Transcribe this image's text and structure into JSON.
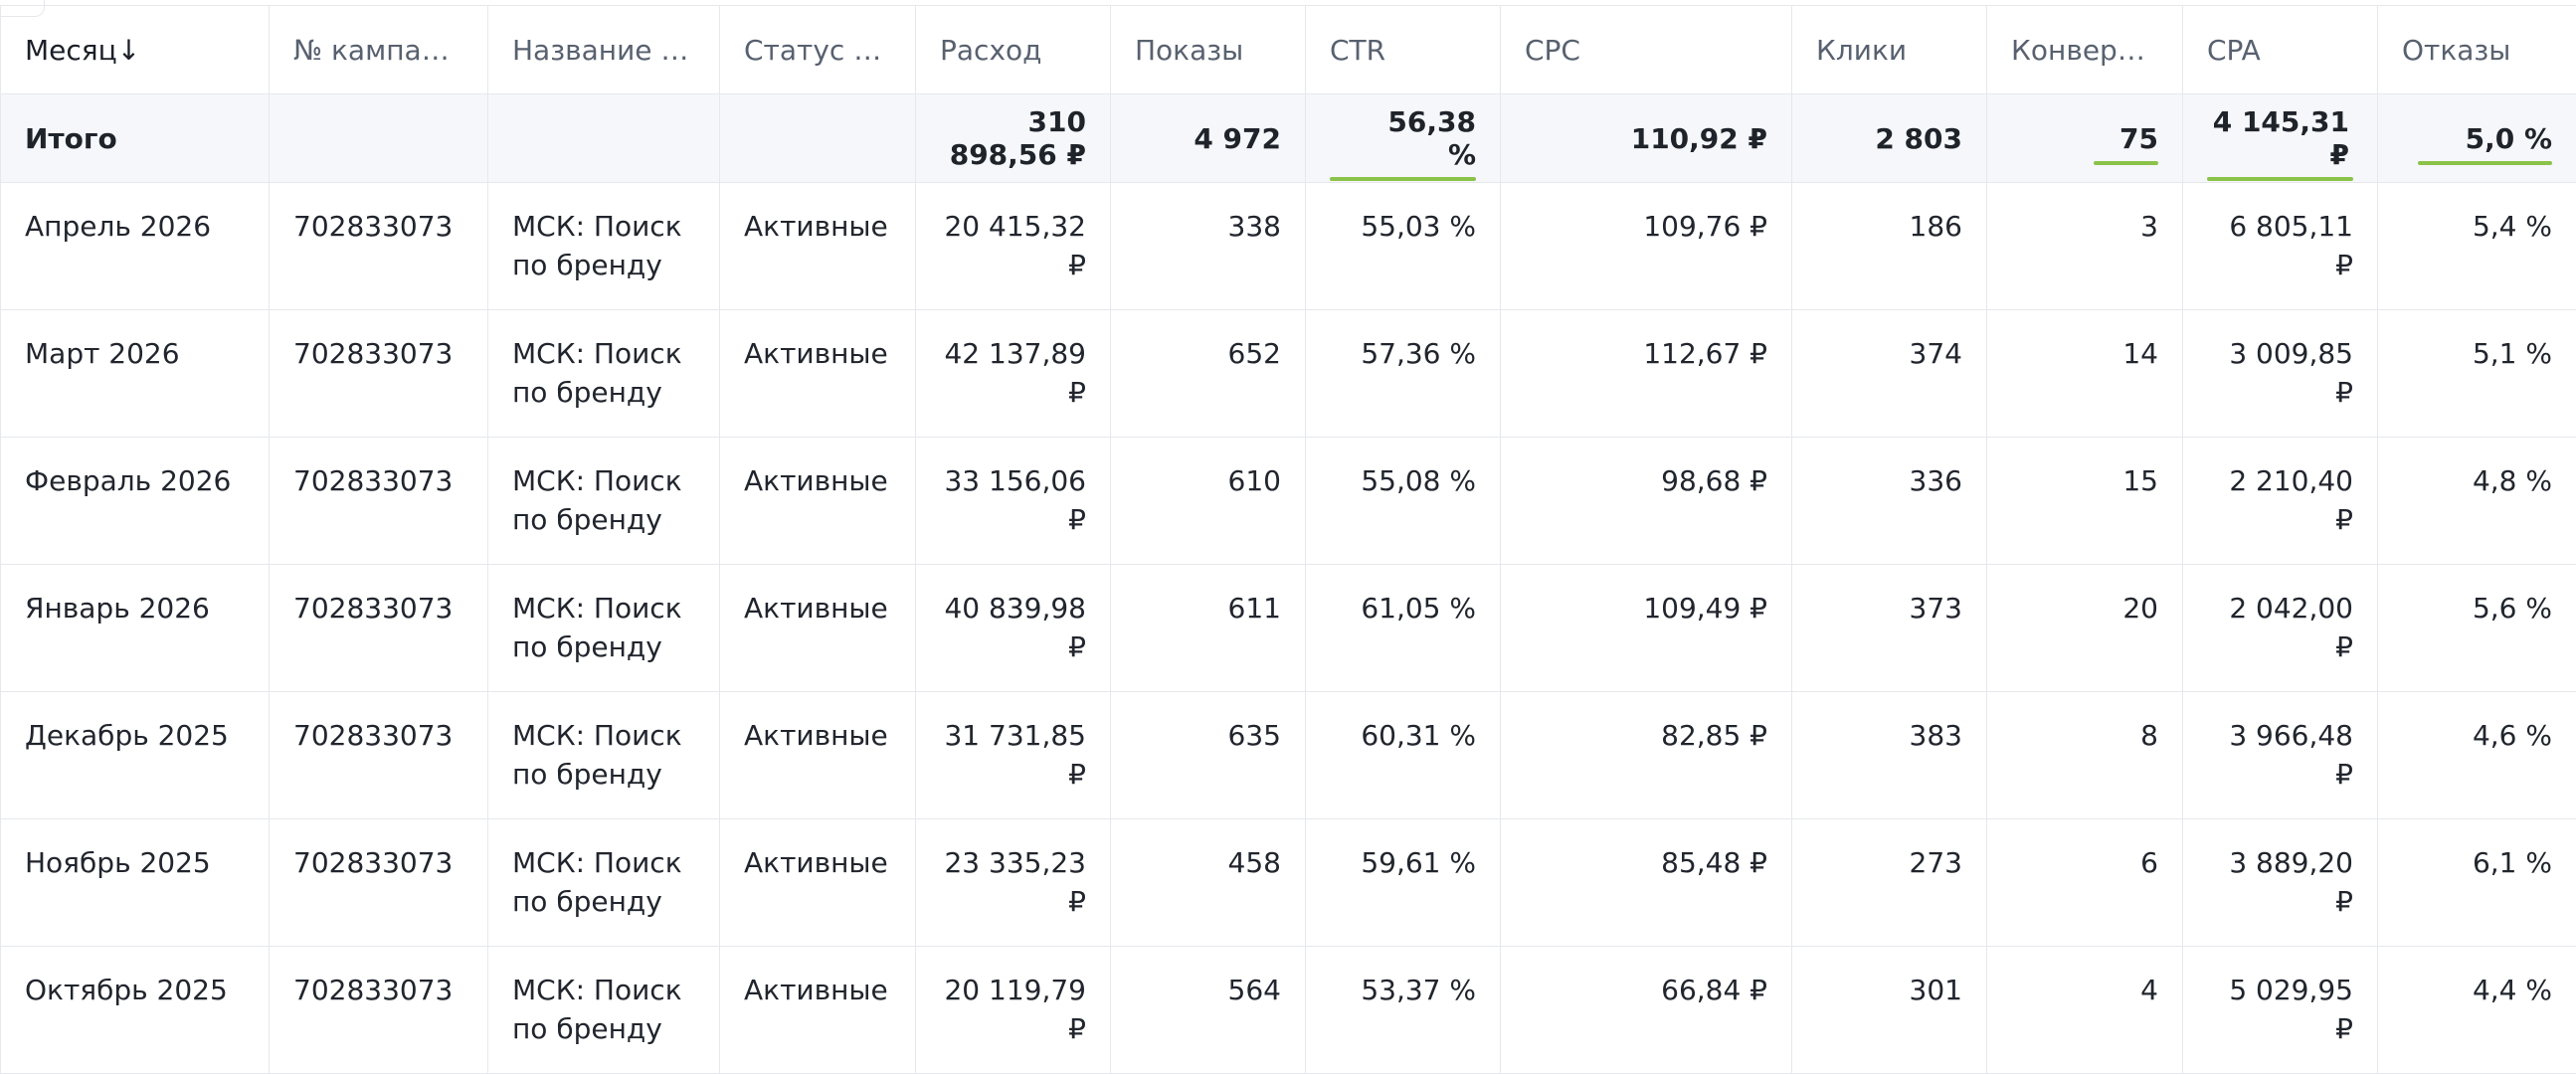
{
  "accent_color": "#8bc34a",
  "columns": [
    {
      "key": "month",
      "label": "Месяц",
      "sort_icon": "arrow-down-icon",
      "sort_glyph": "↓"
    },
    {
      "key": "campaign_no",
      "label": "№ кампании"
    },
    {
      "key": "campaign_name",
      "label": "Название ка..."
    },
    {
      "key": "campaign_status",
      "label": "Статус ка..."
    },
    {
      "key": "spend",
      "label": "Расход"
    },
    {
      "key": "impressions",
      "label": "Показы"
    },
    {
      "key": "ctr",
      "label": "CTR"
    },
    {
      "key": "cpc",
      "label": "CPC"
    },
    {
      "key": "clicks",
      "label": "Клики"
    },
    {
      "key": "conversions",
      "label": "Конверсии"
    },
    {
      "key": "cpa",
      "label": "CPA"
    },
    {
      "key": "bounces",
      "label": "Отказы"
    }
  ],
  "total": {
    "label": "Итого",
    "campaign_no": "",
    "campaign_name": "",
    "campaign_status": "",
    "spend": "310 898,56 ₽",
    "impressions": "4 972",
    "ctr": "56,38 %",
    "cpc": "110,92 ₽",
    "clicks": "2 803",
    "conversions": "75",
    "cpa": "4 145,31 ₽",
    "bounces": "5,0 %"
  },
  "rows": [
    {
      "month": "Апрель 2026",
      "campaign_no": "702833073",
      "campaign_name": "МСК: Поиск по бренду",
      "campaign_status": "Активные",
      "spend": "20 415,32 ₽",
      "impressions": "338",
      "ctr": "55,03 %",
      "cpc": "109,76 ₽",
      "clicks": "186",
      "conversions": "3",
      "cpa": "6 805,11 ₽",
      "bounces": "5,4 %"
    },
    {
      "month": "Март 2026",
      "campaign_no": "702833073",
      "campaign_name": "МСК: Поиск по бренду",
      "campaign_status": "Активные",
      "spend": "42 137,89 ₽",
      "impressions": "652",
      "ctr": "57,36 %",
      "cpc": "112,67 ₽",
      "clicks": "374",
      "conversions": "14",
      "cpa": "3 009,85 ₽",
      "bounces": "5,1 %"
    },
    {
      "month": "Февраль 2026",
      "campaign_no": "702833073",
      "campaign_name": "МСК: Поиск по бренду",
      "campaign_status": "Активные",
      "spend": "33 156,06 ₽",
      "impressions": "610",
      "ctr": "55,08 %",
      "cpc": "98,68 ₽",
      "clicks": "336",
      "conversions": "15",
      "cpa": "2 210,40 ₽",
      "bounces": "4,8 %"
    },
    {
      "month": "Январь 2026",
      "campaign_no": "702833073",
      "campaign_name": "МСК: Поиск по бренду",
      "campaign_status": "Активные",
      "spend": "40 839,98 ₽",
      "impressions": "611",
      "ctr": "61,05 %",
      "cpc": "109,49 ₽",
      "clicks": "373",
      "conversions": "20",
      "cpa": "2 042,00 ₽",
      "bounces": "5,6 %"
    },
    {
      "month": "Декабрь 2025",
      "campaign_no": "702833073",
      "campaign_name": "МСК: Поиск по бренду",
      "campaign_status": "Активные",
      "spend": "31 731,85 ₽",
      "impressions": "635",
      "ctr": "60,31 %",
      "cpc": "82,85 ₽",
      "clicks": "383",
      "conversions": "8",
      "cpa": "3 966,48 ₽",
      "bounces": "4,6 %"
    },
    {
      "month": "Ноябрь 2025",
      "campaign_no": "702833073",
      "campaign_name": "МСК: Поиск по бренду",
      "campaign_status": "Активные",
      "spend": "23 335,23 ₽",
      "impressions": "458",
      "ctr": "59,61 %",
      "cpc": "85,48 ₽",
      "clicks": "273",
      "conversions": "6",
      "cpa": "3 889,20 ₽",
      "bounces": "6,1 %"
    },
    {
      "month": "Октябрь 2025",
      "campaign_no": "702833073",
      "campaign_name": "МСК: Поиск по бренду",
      "campaign_status": "Активные",
      "spend": "20 119,79 ₽",
      "impressions": "564",
      "ctr": "53,37 %",
      "cpc": "66,84 ₽",
      "clicks": "301",
      "conversions": "4",
      "cpa": "5 029,95 ₽",
      "bounces": "4,4 %"
    }
  ]
}
